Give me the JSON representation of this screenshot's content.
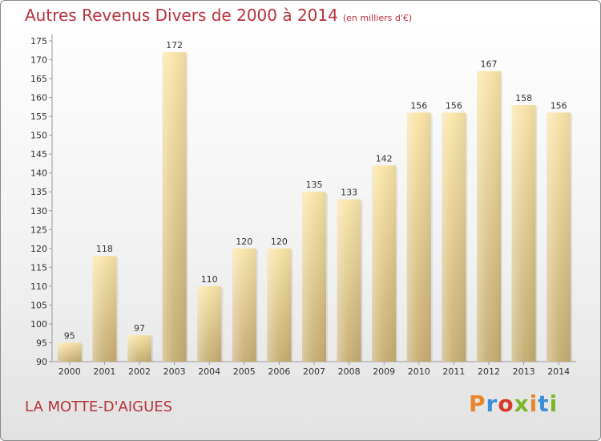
{
  "title": "Autres Revenus Divers de 2000 à 2014",
  "subtitle": "(en milliers d'€)",
  "place": "LA MOTTE-D'AIGUES",
  "logo": "Proxiti",
  "colors": {
    "title": "#b7323c",
    "bar_light": "#f9e4a8",
    "bar_dark": "#c6ad72",
    "logo": [
      "#e8862a",
      "#3a8fd8",
      "#d83a2a",
      "#7ab82a",
      "#e8862a",
      "#3a8fd8",
      "#7ab82a"
    ]
  },
  "chart_data": {
    "type": "bar",
    "categories": [
      "2000",
      "2001",
      "2002",
      "2003",
      "2004",
      "2005",
      "2006",
      "2007",
      "2008",
      "2009",
      "2010",
      "2011",
      "2012",
      "2013",
      "2014"
    ],
    "values": [
      95,
      118,
      97,
      172,
      110,
      120,
      120,
      135,
      133,
      142,
      156,
      156,
      167,
      158,
      156
    ],
    "data_labels": [
      "95",
      "118",
      "97",
      "172",
      "110",
      "120",
      "120",
      "135",
      "133",
      "142",
      "156",
      "156",
      "167",
      "158",
      "156"
    ],
    "ylim": [
      90,
      175
    ],
    "yticks": [
      90,
      95,
      100,
      105,
      110,
      115,
      120,
      125,
      130,
      135,
      140,
      145,
      150,
      155,
      160,
      165,
      170,
      175
    ],
    "grid": false,
    "legend": "none"
  }
}
